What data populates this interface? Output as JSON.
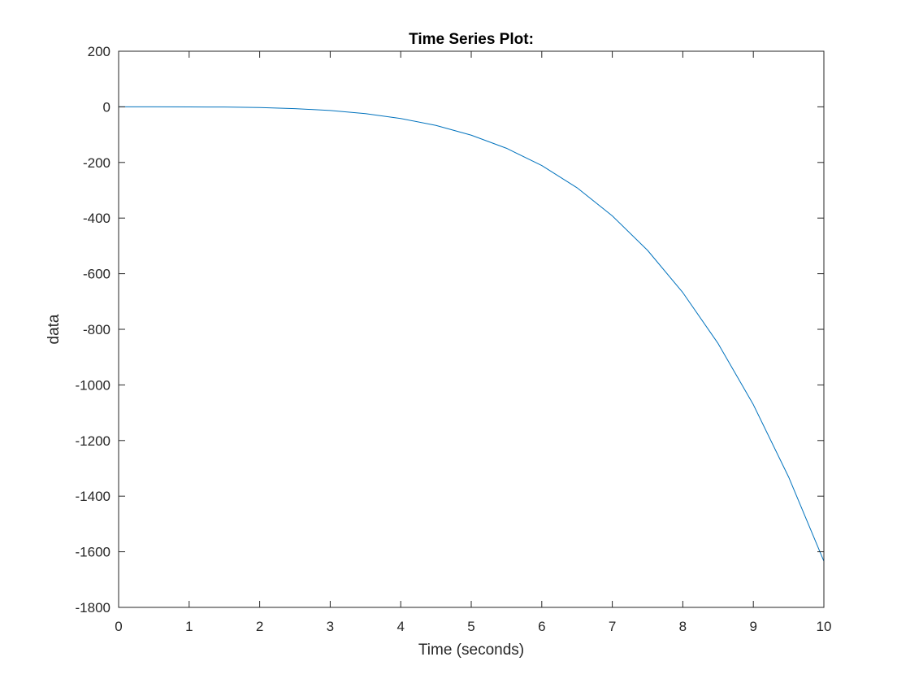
{
  "chart_data": {
    "type": "line",
    "title": "Time Series Plot:",
    "xlabel": "Time (seconds)",
    "ylabel": "data",
    "xlim": [
      0,
      10
    ],
    "ylim": [
      -1800,
      200
    ],
    "xticks": [
      0,
      1,
      2,
      3,
      4,
      5,
      6,
      7,
      8,
      9,
      10
    ],
    "yticks": [
      -1800,
      -1600,
      -1400,
      -1200,
      -1000,
      -800,
      -600,
      -400,
      -200,
      0,
      200
    ],
    "grid": false,
    "legend": "none",
    "series": [
      {
        "color": "#0072BD",
        "x": [
          0,
          0.5,
          1,
          1.5,
          2,
          2.5,
          3,
          3.5,
          4,
          4.5,
          5,
          5.5,
          6,
          6.5,
          7,
          7.5,
          8,
          8.5,
          9,
          9.5,
          10
        ],
        "y": [
          0,
          0,
          -0.2,
          -0.8,
          -2.6,
          -6.4,
          -13.2,
          -24.5,
          -41.8,
          -66.9,
          -102,
          -149,
          -211,
          -291,
          -392,
          -516,
          -668,
          -851,
          -1071,
          -1331,
          -1634
        ]
      }
    ]
  }
}
